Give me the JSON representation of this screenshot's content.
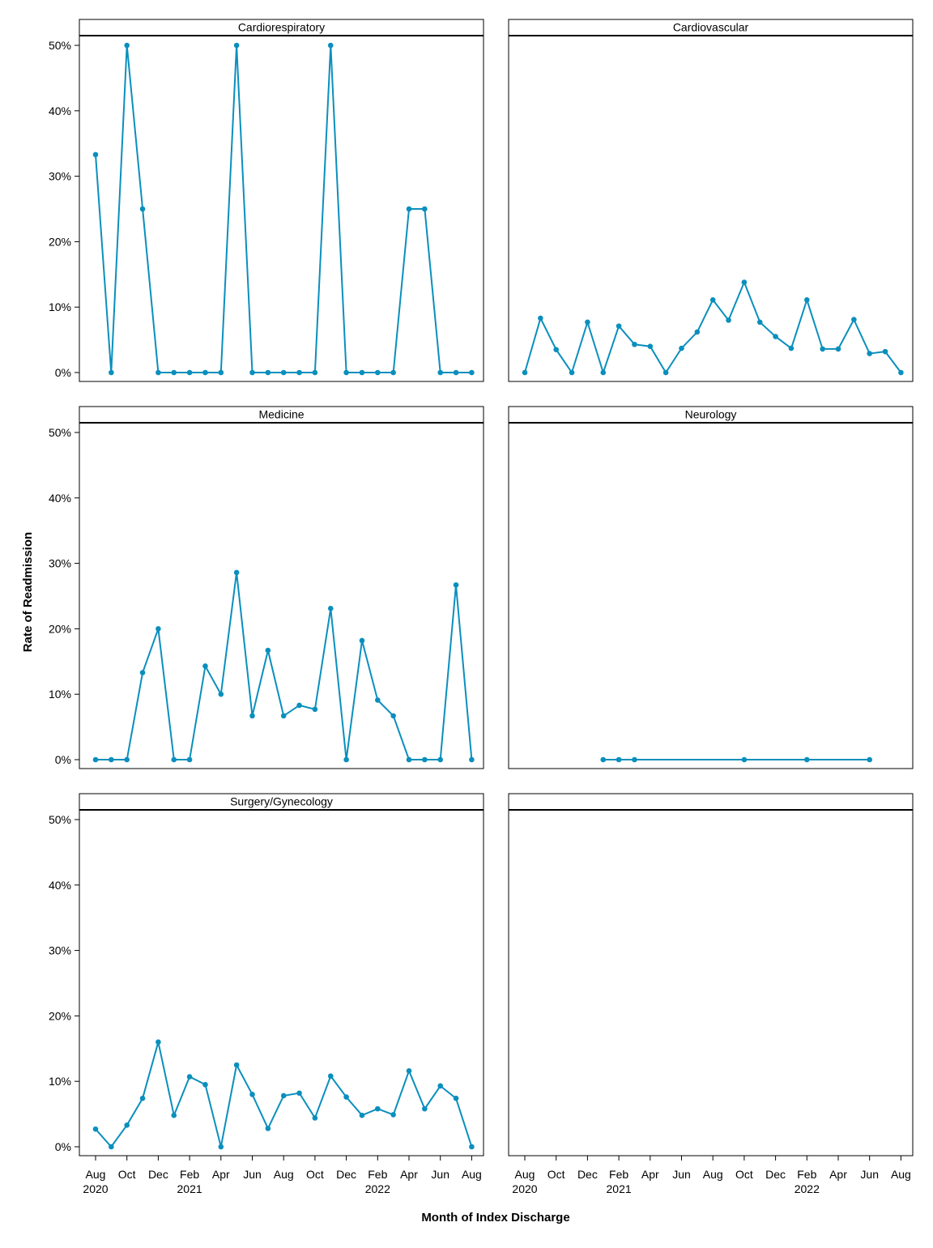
{
  "chart_data": {
    "type": "line",
    "layout": "panel grid, 3 rows x 2 columns, shared axes",
    "xlabel": "Month of Index Discharge",
    "ylabel": "Rate of Readmission",
    "x": [
      "2020-08",
      "2020-09",
      "2020-10",
      "2020-11",
      "2020-12",
      "2021-01",
      "2021-02",
      "2021-03",
      "2021-04",
      "2021-05",
      "2021-06",
      "2021-07",
      "2021-08",
      "2021-09",
      "2021-10",
      "2021-11",
      "2021-12",
      "2022-01",
      "2022-02",
      "2022-03",
      "2022-04",
      "2022-05",
      "2022-06",
      "2022-07",
      "2022-08"
    ],
    "x_tick_labels": [
      {
        "month": "Aug",
        "year": "2020"
      },
      {
        "month": "Oct",
        "year": ""
      },
      {
        "month": "Dec",
        "year": ""
      },
      {
        "month": "Feb",
        "year": "2021"
      },
      {
        "month": "Apr",
        "year": ""
      },
      {
        "month": "Jun",
        "year": ""
      },
      {
        "month": "Aug",
        "year": ""
      },
      {
        "month": "Oct",
        "year": ""
      },
      {
        "month": "Dec",
        "year": ""
      },
      {
        "month": "Feb",
        "year": "2022"
      },
      {
        "month": "Apr",
        "year": ""
      },
      {
        "month": "Jun",
        "year": ""
      },
      {
        "month": "Aug",
        "year": ""
      }
    ],
    "y_ticks": [
      "0%",
      "10%",
      "20%",
      "30%",
      "40%",
      "50%"
    ],
    "ylim": [
      0,
      0.52
    ],
    "grid": false,
    "line_color": "#0a8fbd",
    "panels": [
      {
        "title": "Cardiorespiratory",
        "values": [
          0.333,
          0,
          0.5,
          0.25,
          0,
          0,
          0,
          0,
          0,
          0.5,
          0,
          0,
          0,
          0,
          0,
          0.5,
          0,
          0,
          0,
          0,
          0.25,
          0.25,
          0,
          0,
          0
        ]
      },
      {
        "title": "Cardiovascular",
        "values": [
          0,
          0.083,
          0.035,
          0,
          0.077,
          0,
          0.071,
          0.043,
          0.04,
          0,
          0.037,
          0.062,
          0.111,
          0.08,
          0.138,
          0.077,
          0.055,
          0.037,
          0.111,
          0.036,
          0.036,
          0.081,
          0.029,
          0.032,
          0
        ]
      },
      {
        "title": "Medicine",
        "values": [
          0,
          0,
          0,
          0.133,
          0.2,
          0,
          0,
          0.143,
          0.1,
          0.286,
          0.067,
          0.167,
          0.067,
          0.083,
          0.077,
          0.231,
          0,
          0.182,
          0.091,
          0.067,
          0,
          0,
          0,
          0.267,
          0
        ]
      },
      {
        "title": "Neurology",
        "values": [
          null,
          null,
          null,
          null,
          null,
          0,
          0,
          0,
          null,
          null,
          null,
          null,
          null,
          null,
          0,
          null,
          null,
          null,
          0,
          null,
          null,
          null,
          0,
          null,
          null
        ]
      },
      {
        "title": "Surgery/Gynecology",
        "values": [
          0.027,
          0,
          0.033,
          0.074,
          0.16,
          0.048,
          0.107,
          0.095,
          0,
          0.125,
          0.08,
          0.028,
          0.078,
          0.082,
          0.044,
          0.108,
          0.076,
          0.048,
          0.058,
          0.049,
          0.116,
          0.058,
          0.093,
          0.074,
          0
        ]
      },
      {
        "title": "",
        "values": []
      }
    ]
  }
}
